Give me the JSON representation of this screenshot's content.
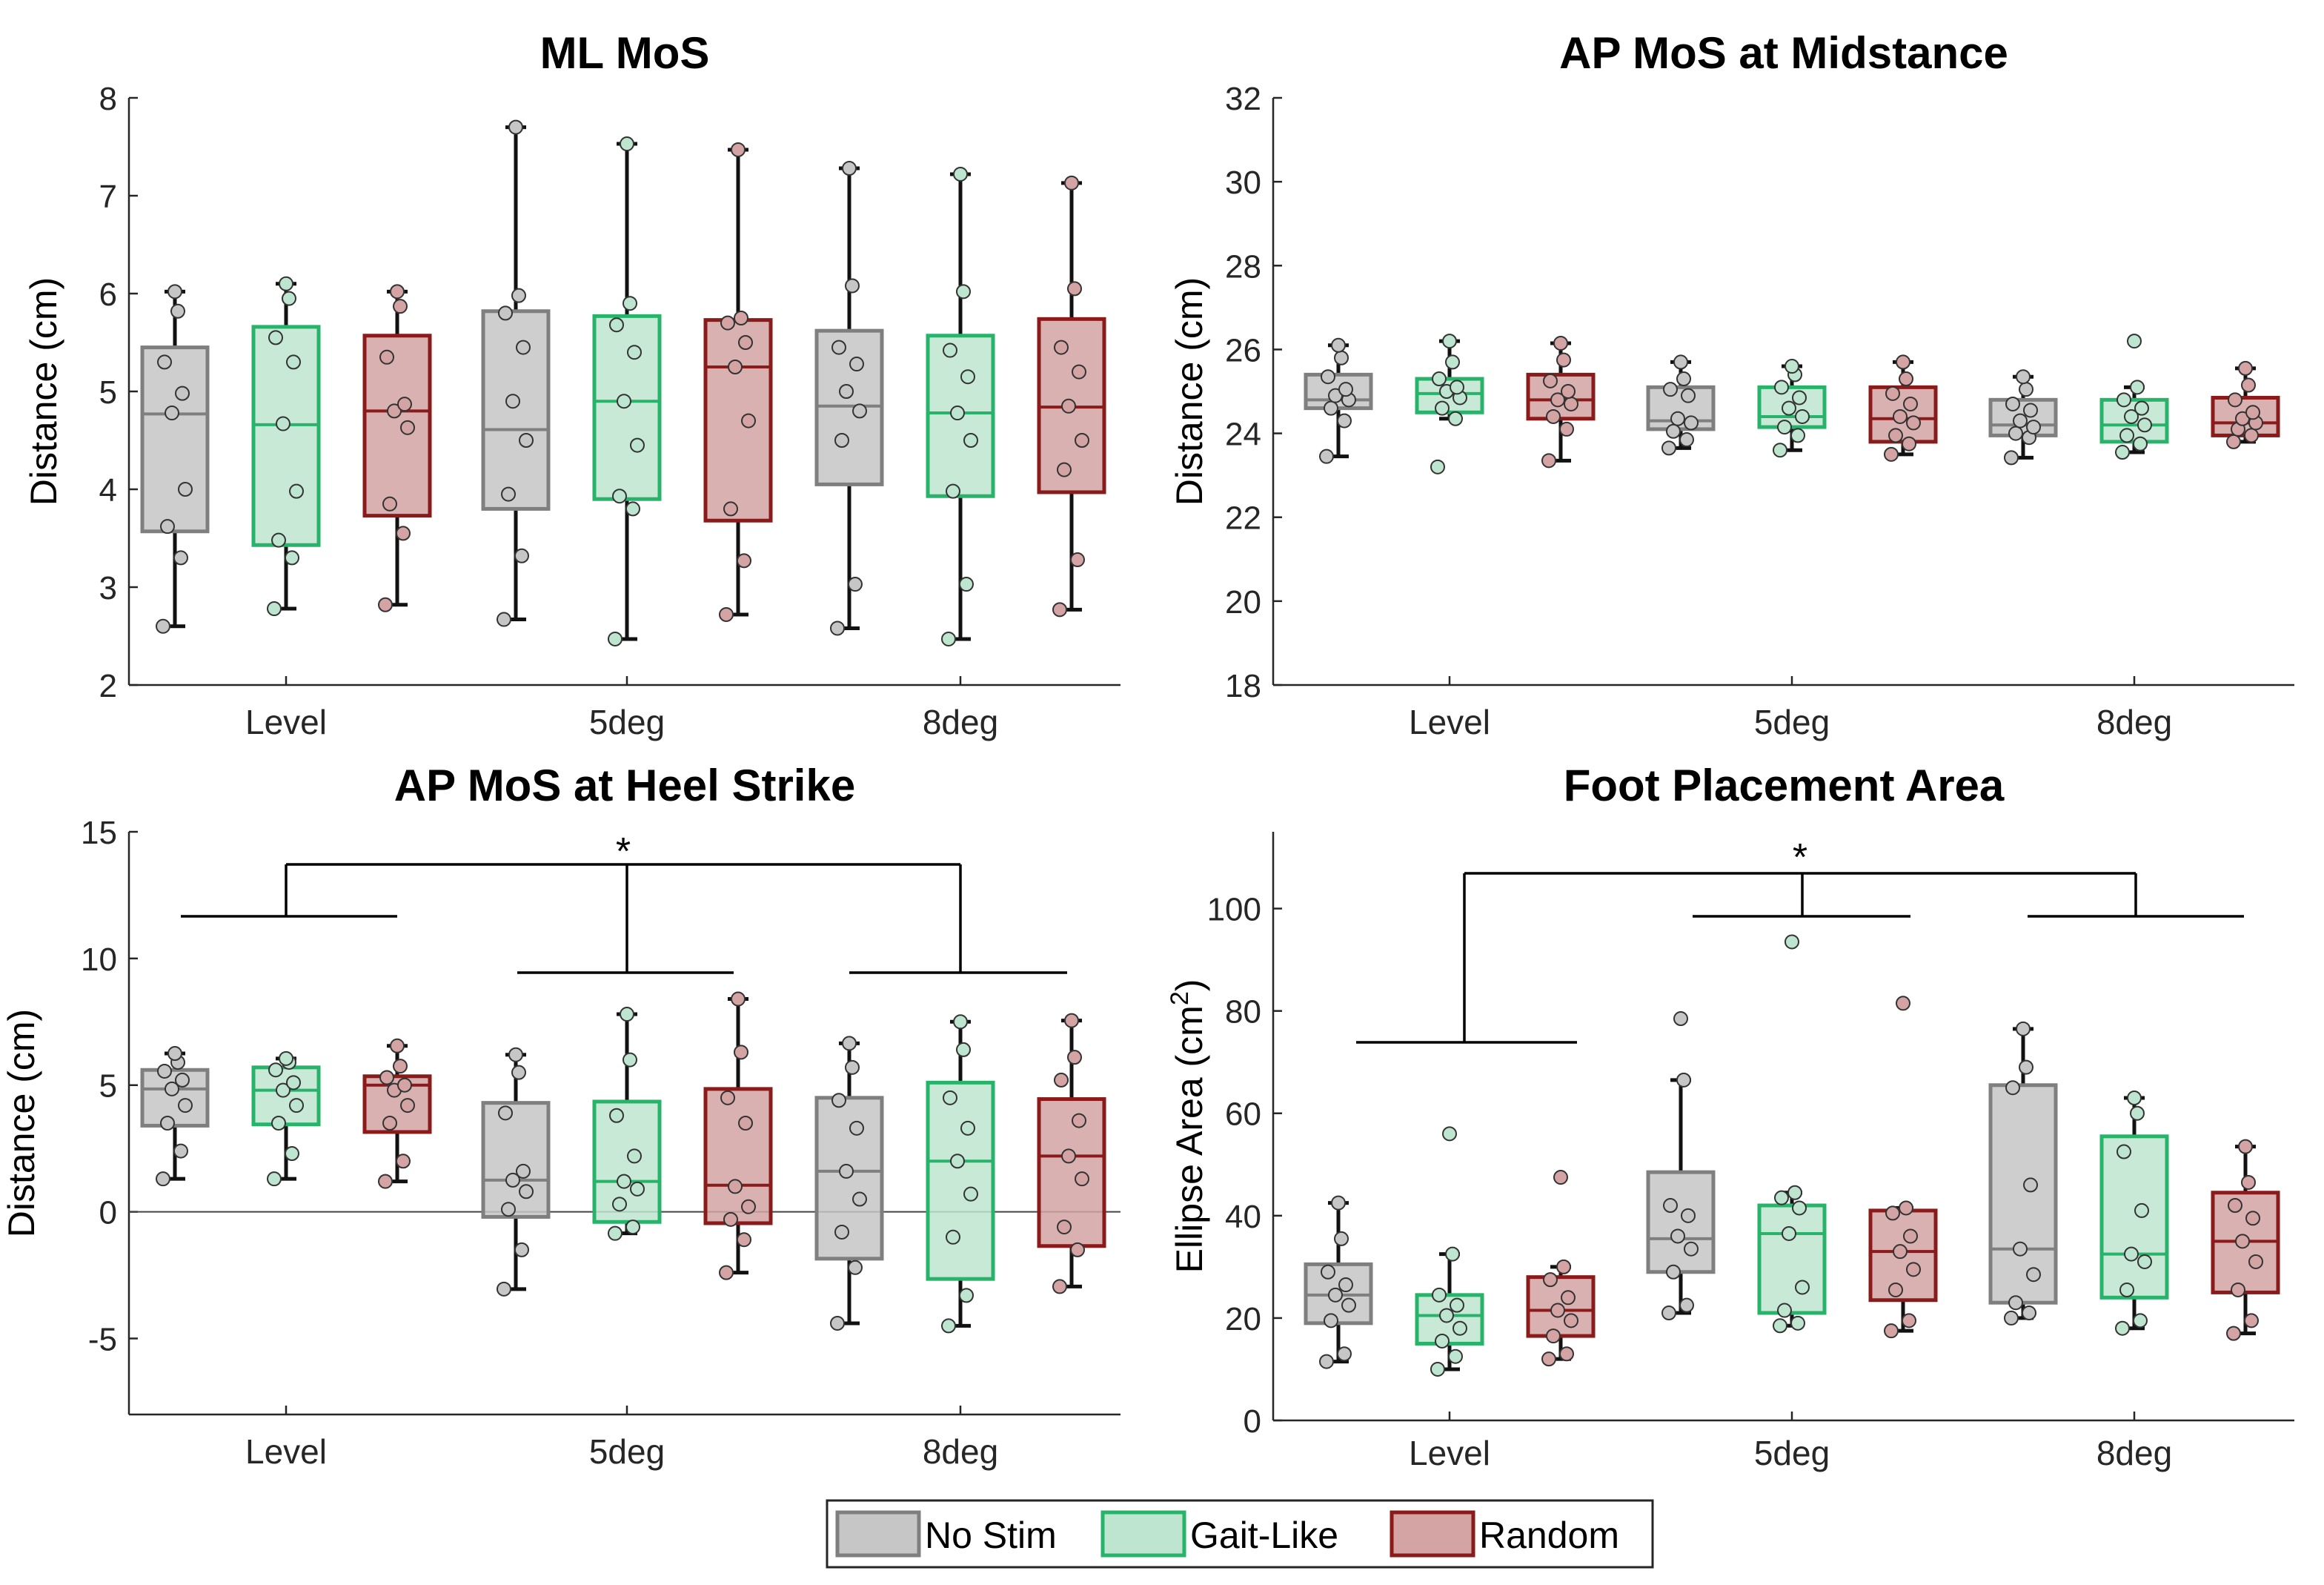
{
  "legend": {
    "position": "bottom-center",
    "items": [
      {
        "label": "No Stim",
        "edge": "#7f7f7f",
        "fill": "#c6c6c6"
      },
      {
        "label": "Gait-Like",
        "edge": "#27b36a",
        "fill": "#bde5cf"
      },
      {
        "label": "Random",
        "edge": "#8b1a1a",
        "fill": "#d4a3a3"
      }
    ]
  },
  "chart_data": [
    {
      "type": "box",
      "title": "ML MoS",
      "ylabel": "Distance (cm)",
      "ylim": [
        2,
        8
      ],
      "yticks": [
        2,
        3,
        4,
        5,
        6,
        7,
        8
      ],
      "categories": [
        "Level",
        "5deg",
        "8deg"
      ],
      "series": [
        {
          "name": "No Stim",
          "boxes": [
            {
              "min": 2.6,
              "q1": 3.57,
              "median": 4.77,
              "q3": 5.45,
              "max": 6.02,
              "points": [
                2.6,
                3.3,
                3.62,
                4.0,
                4.78,
                4.98,
                5.3,
                5.82,
                6.02
              ],
              "outliers": []
            },
            {
              "min": 2.67,
              "q1": 3.8,
              "median": 4.61,
              "q3": 5.82,
              "max": 7.7,
              "points": [
                2.67,
                3.32,
                3.95,
                4.5,
                4.9,
                5.45,
                5.8,
                5.98,
                7.7
              ],
              "outliers": []
            },
            {
              "min": 2.58,
              "q1": 4.05,
              "median": 4.85,
              "q3": 5.62,
              "max": 7.28,
              "points": [
                2.58,
                3.03,
                4.5,
                4.8,
                5.0,
                5.28,
                5.45,
                6.08,
                7.28
              ],
              "outliers": []
            }
          ]
        },
        {
          "name": "Gait-Like",
          "boxes": [
            {
              "min": 2.78,
              "q1": 3.43,
              "median": 4.66,
              "q3": 5.66,
              "max": 6.1,
              "points": [
                2.78,
                3.3,
                3.48,
                3.98,
                4.67,
                5.3,
                5.55,
                5.95,
                6.1
              ],
              "outliers": []
            },
            {
              "min": 2.47,
              "q1": 3.9,
              "median": 4.9,
              "q3": 5.77,
              "max": 7.53,
              "points": [
                2.47,
                3.8,
                3.93,
                4.45,
                4.9,
                5.4,
                5.68,
                5.9,
                7.53
              ],
              "outliers": []
            },
            {
              "min": 2.47,
              "q1": 3.93,
              "median": 4.78,
              "q3": 5.57,
              "max": 7.22,
              "points": [
                2.47,
                3.03,
                3.98,
                4.5,
                4.78,
                5.15,
                5.42,
                6.02,
                7.22
              ],
              "outliers": []
            }
          ]
        },
        {
          "name": "Random",
          "boxes": [
            {
              "min": 2.82,
              "q1": 3.73,
              "median": 4.8,
              "q3": 5.57,
              "max": 6.02,
              "points": [
                2.82,
                3.55,
                3.85,
                4.63,
                4.8,
                4.87,
                5.35,
                5.87,
                6.02
              ],
              "outliers": []
            },
            {
              "min": 2.72,
              "q1": 3.68,
              "median": 5.25,
              "q3": 5.73,
              "max": 7.47,
              "points": [
                2.72,
                3.27,
                3.8,
                4.7,
                5.25,
                5.5,
                5.7,
                5.75,
                7.47
              ],
              "outliers": []
            },
            {
              "min": 2.77,
              "q1": 3.97,
              "median": 4.84,
              "q3": 5.74,
              "max": 7.13,
              "points": [
                2.77,
                3.28,
                4.2,
                4.5,
                4.85,
                5.2,
                5.45,
                6.05,
                7.13
              ],
              "outliers": []
            }
          ]
        }
      ]
    },
    {
      "type": "box",
      "title": "AP MoS at Midstance",
      "ylabel": "Distance (cm)",
      "ylim": [
        18,
        32
      ],
      "yticks": [
        18,
        20,
        22,
        24,
        26,
        28,
        30,
        32
      ],
      "categories": [
        "Level",
        "5deg",
        "8deg"
      ],
      "series": [
        {
          "name": "No Stim",
          "boxes": [
            {
              "min": 23.45,
              "q1": 24.6,
              "median": 24.8,
              "q3": 25.4,
              "max": 26.1,
              "points": [
                23.45,
                24.3,
                24.6,
                24.8,
                24.9,
                25.05,
                25.35,
                25.8,
                26.1
              ],
              "outliers": []
            },
            {
              "min": 23.65,
              "q1": 24.1,
              "median": 24.3,
              "q3": 25.1,
              "max": 25.7,
              "points": [
                23.65,
                23.85,
                24.05,
                24.25,
                24.35,
                24.9,
                25.05,
                25.3,
                25.7
              ],
              "outliers": []
            },
            {
              "min": 23.42,
              "q1": 23.95,
              "median": 24.2,
              "q3": 24.8,
              "max": 25.35,
              "points": [
                23.42,
                23.9,
                24.0,
                24.15,
                24.3,
                24.55,
                24.7,
                25.05,
                25.35
              ],
              "outliers": []
            }
          ]
        },
        {
          "name": "Gait-Like",
          "boxes": [
            {
              "min": 24.35,
              "q1": 24.5,
              "median": 24.95,
              "q3": 25.3,
              "max": 26.2,
              "points": [
                23.2,
                24.35,
                24.6,
                24.85,
                25.0,
                25.1,
                25.3,
                25.7,
                26.2
              ],
              "outliers": [
                23.2
              ]
            },
            {
              "min": 23.6,
              "q1": 24.15,
              "median": 24.4,
              "q3": 25.1,
              "max": 25.6,
              "points": [
                23.6,
                23.95,
                24.15,
                24.4,
                24.6,
                24.85,
                25.1,
                25.4,
                25.6
              ],
              "outliers": []
            },
            {
              "min": 23.55,
              "q1": 23.8,
              "median": 24.2,
              "q3": 24.8,
              "max": 25.1,
              "points": [
                23.55,
                23.75,
                23.95,
                24.2,
                24.4,
                24.6,
                24.8,
                25.1,
                26.2
              ],
              "outliers": [
                26.2
              ]
            }
          ]
        },
        {
          "name": "Random",
          "boxes": [
            {
              "min": 23.35,
              "q1": 24.35,
              "median": 24.8,
              "q3": 25.4,
              "max": 26.15,
              "points": [
                23.35,
                24.1,
                24.4,
                24.7,
                24.8,
                25.0,
                25.25,
                25.75,
                26.15
              ],
              "outliers": []
            },
            {
              "min": 23.5,
              "q1": 23.8,
              "median": 24.35,
              "q3": 25.1,
              "max": 25.7,
              "points": [
                23.5,
                23.75,
                23.95,
                24.25,
                24.4,
                24.7,
                24.95,
                25.3,
                25.7
              ],
              "outliers": []
            },
            {
              "min": 23.8,
              "q1": 23.95,
              "median": 24.25,
              "q3": 24.85,
              "max": 25.55,
              "points": [
                23.8,
                23.95,
                24.1,
                24.25,
                24.35,
                24.5,
                24.8,
                25.15,
                25.55
              ],
              "outliers": []
            }
          ]
        }
      ]
    },
    {
      "type": "box",
      "title": "AP MoS at Heel Strike",
      "ylabel": "Distance (cm)",
      "ylim": [
        -8,
        15
      ],
      "yticks": [
        -5,
        0,
        5,
        10,
        15
      ],
      "zero_line": true,
      "categories": [
        "Level",
        "5deg",
        "8deg"
      ],
      "significance": "*",
      "series": [
        {
          "name": "No Stim",
          "boxes": [
            {
              "min": 1.3,
              "q1": 3.4,
              "median": 4.85,
              "q3": 5.6,
              "max": 6.25,
              "points": [
                1.3,
                2.4,
                3.5,
                4.2,
                4.85,
                5.2,
                5.55,
                5.9,
                6.25
              ],
              "outliers": []
            },
            {
              "min": -3.05,
              "q1": -0.2,
              "median": 1.25,
              "q3": 4.3,
              "max": 6.2,
              "points": [
                -3.05,
                -1.5,
                0.1,
                0.8,
                1.25,
                1.6,
                3.9,
                5.5,
                6.2
              ],
              "outliers": []
            },
            {
              "min": -4.4,
              "q1": -1.85,
              "median": 1.6,
              "q3": 4.5,
              "max": 6.65,
              "points": [
                -4.4,
                -2.2,
                -0.8,
                0.5,
                1.6,
                3.3,
                4.4,
                5.7,
                6.65
              ],
              "outliers": []
            }
          ]
        },
        {
          "name": "Gait-Like",
          "boxes": [
            {
              "min": 1.3,
              "q1": 3.45,
              "median": 4.8,
              "q3": 5.7,
              "max": 6.05,
              "points": [
                1.3,
                2.3,
                3.5,
                4.2,
                4.8,
                5.1,
                5.6,
                5.9,
                6.05
              ],
              "outliers": []
            },
            {
              "min": -0.85,
              "q1": -0.4,
              "median": 1.2,
              "q3": 4.35,
              "max": 7.8,
              "points": [
                -0.85,
                -0.6,
                0.3,
                0.9,
                1.2,
                2.2,
                3.8,
                6.0,
                7.8
              ],
              "outliers": []
            },
            {
              "min": -4.5,
              "q1": -2.65,
              "median": 2.0,
              "q3": 5.1,
              "max": 7.5,
              "points": [
                -4.5,
                -3.3,
                -1.0,
                0.7,
                2.0,
                3.3,
                4.5,
                6.4,
                7.5
              ],
              "outliers": []
            }
          ]
        },
        {
          "name": "Random",
          "boxes": [
            {
              "min": 1.2,
              "q1": 3.15,
              "median": 5.0,
              "q3": 5.35,
              "max": 6.55,
              "points": [
                1.2,
                2.0,
                3.5,
                4.2,
                4.8,
                5.0,
                5.3,
                5.75,
                6.55
              ],
              "outliers": []
            },
            {
              "min": -2.4,
              "q1": -0.45,
              "median": 1.05,
              "q3": 4.85,
              "max": 8.4,
              "points": [
                -2.4,
                -1.1,
                -0.3,
                0.2,
                1.0,
                3.5,
                4.5,
                6.3,
                8.4
              ],
              "outliers": []
            },
            {
              "min": -2.95,
              "q1": -1.35,
              "median": 2.2,
              "q3": 4.45,
              "max": 7.55,
              "points": [
                -2.95,
                -1.5,
                -0.6,
                1.3,
                2.2,
                3.6,
                5.2,
                6.1,
                7.55
              ],
              "outliers": []
            }
          ]
        }
      ]
    },
    {
      "type": "box",
      "title": "Foot Placement Area",
      "ylabel": "Ellipse Area (cm",
      "ylabel_sup": "2",
      "ylabel_end": ")",
      "ylim": [
        0,
        115
      ],
      "yticks": [
        0,
        20,
        40,
        60,
        80,
        100
      ],
      "categories": [
        "Level",
        "5deg",
        "8deg"
      ],
      "significance": "*",
      "series": [
        {
          "name": "No Stim",
          "boxes": [
            {
              "min": 11.5,
              "q1": 19.0,
              "median": 24.5,
              "q3": 30.5,
              "max": 42.5,
              "points": [
                11.5,
                13.0,
                19.5,
                22.5,
                24.5,
                26.5,
                29.0,
                35.5,
                42.5
              ],
              "outliers": []
            },
            {
              "min": 21.0,
              "q1": 29.0,
              "median": 35.5,
              "q3": 48.5,
              "max": 66.5,
              "points": [
                21.0,
                22.5,
                29.0,
                33.5,
                36.0,
                40.0,
                42.0,
                66.5,
                78.5
              ],
              "outliers": [
                78.5
              ]
            },
            {
              "min": 20.0,
              "q1": 23.0,
              "median": 33.5,
              "q3": 65.5,
              "max": 76.5,
              "points": [
                20.0,
                21.0,
                23.0,
                28.5,
                33.5,
                46.0,
                65.0,
                69.0,
                76.5
              ],
              "outliers": []
            }
          ]
        },
        {
          "name": "Gait-Like",
          "boxes": [
            {
              "min": 10.0,
              "q1": 15.0,
              "median": 20.5,
              "q3": 24.5,
              "max": 32.5,
              "points": [
                10.0,
                12.5,
                15.5,
                18.0,
                20.5,
                22.5,
                24.5,
                32.5,
                56.0
              ],
              "outliers": [
                56.0
              ]
            },
            {
              "min": 18.5,
              "q1": 21.0,
              "median": 36.5,
              "q3": 42.0,
              "max": 44.5,
              "points": [
                18.5,
                19.0,
                21.5,
                26.0,
                36.5,
                41.5,
                43.5,
                44.5,
                93.5
              ],
              "outliers": [
                93.5
              ]
            },
            {
              "min": 18.0,
              "q1": 24.0,
              "median": 32.5,
              "q3": 55.5,
              "max": 63.0,
              "points": [
                18.0,
                19.5,
                25.5,
                31.0,
                32.5,
                41.0,
                52.5,
                60.0,
                63.0
              ],
              "outliers": []
            }
          ]
        },
        {
          "name": "Random",
          "boxes": [
            {
              "min": 12.0,
              "q1": 16.5,
              "median": 21.5,
              "q3": 28.0,
              "max": 30.0,
              "points": [
                12.0,
                13.0,
                16.5,
                19.5,
                21.5,
                24.0,
                27.5,
                30.0,
                47.5
              ],
              "outliers": [
                47.5
              ]
            },
            {
              "min": 17.5,
              "q1": 23.5,
              "median": 33.0,
              "q3": 41.0,
              "max": 41.5,
              "points": [
                17.5,
                19.5,
                25.5,
                29.5,
                33.0,
                36.0,
                40.5,
                41.5,
                81.5
              ],
              "outliers": [
                81.5
              ]
            },
            {
              "min": 17.0,
              "q1": 25.0,
              "median": 35.0,
              "q3": 44.5,
              "max": 53.5,
              "points": [
                17.0,
                19.5,
                25.5,
                31.0,
                35.0,
                39.5,
                42.0,
                46.5,
                53.5
              ],
              "outliers": []
            }
          ]
        }
      ]
    }
  ]
}
